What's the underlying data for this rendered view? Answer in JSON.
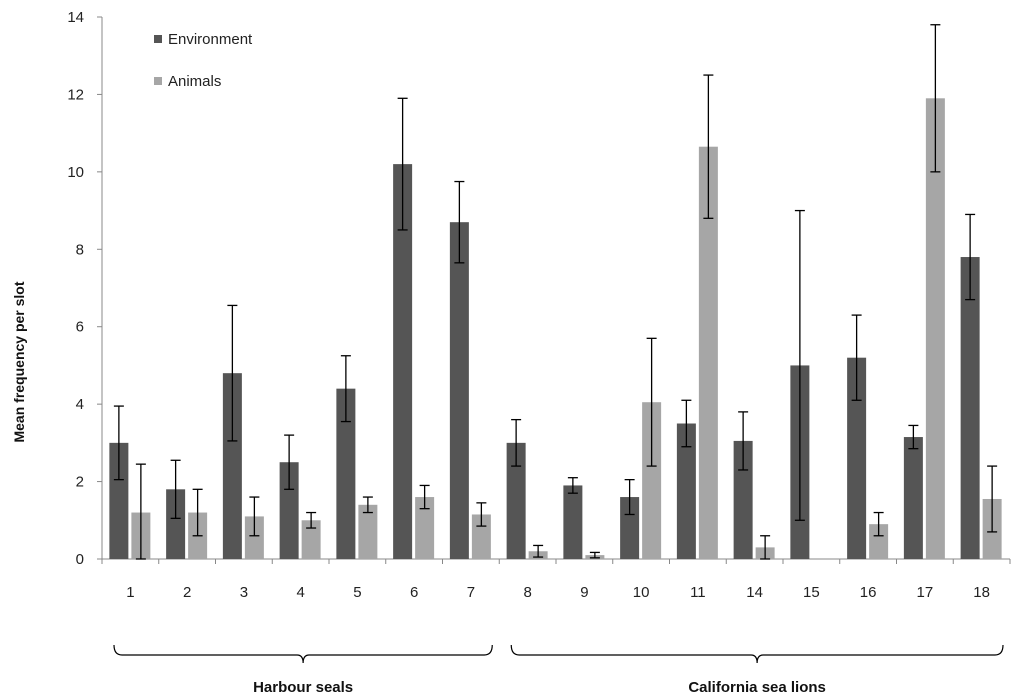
{
  "chart_data": {
    "type": "bar",
    "title": "",
    "xlabel": "",
    "ylabel": "Mean frequency per slot",
    "ylim": [
      0,
      14
    ],
    "yticks": [
      0,
      2,
      4,
      6,
      8,
      10,
      12,
      14
    ],
    "grid": false,
    "legend_position": "top-left",
    "categories": [
      "1",
      "2",
      "3",
      "4",
      "5",
      "6",
      "7",
      "8",
      "9",
      "10",
      "11",
      "14",
      "15",
      "16",
      "17",
      "18"
    ],
    "series": [
      {
        "name": "Environment",
        "color": "#555555",
        "values": [
          3.0,
          1.8,
          4.8,
          2.5,
          4.4,
          10.2,
          8.7,
          3.0,
          1.9,
          1.6,
          3.5,
          3.05,
          5.0,
          5.2,
          3.15,
          7.8
        ],
        "errors": [
          0.95,
          0.75,
          1.75,
          0.7,
          0.85,
          1.7,
          1.05,
          0.6,
          0.2,
          0.45,
          0.6,
          0.75,
          4.0,
          1.1,
          0.3,
          1.1
        ]
      },
      {
        "name": "Animals",
        "color": "#a6a6a6",
        "values": [
          1.2,
          1.2,
          1.1,
          1.0,
          1.4,
          1.6,
          1.15,
          0.2,
          0.1,
          4.05,
          10.65,
          0.3,
          0.0,
          0.9,
          11.9,
          1.55
        ],
        "errors": [
          1.25,
          0.6,
          0.5,
          0.2,
          0.2,
          0.3,
          0.3,
          0.15,
          0.07,
          1.65,
          1.85,
          0.3,
          0.0,
          0.3,
          1.9,
          0.85
        ]
      }
    ],
    "groups": [
      {
        "label": "Harbour seals",
        "categories": [
          "1",
          "2",
          "3",
          "4",
          "5",
          "6",
          "7"
        ]
      },
      {
        "label": "California sea lions",
        "categories": [
          "8",
          "9",
          "10",
          "11",
          "14",
          "15",
          "16",
          "17",
          "18"
        ]
      }
    ]
  }
}
